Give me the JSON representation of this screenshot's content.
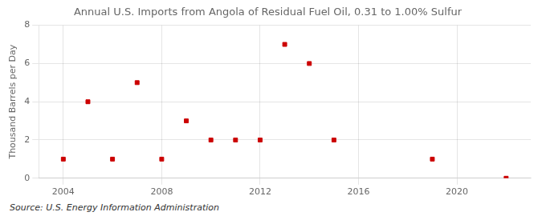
{
  "chart_data": {
    "type": "scatter",
    "title": "Annual U.S. Imports from Angola of Residual Fuel Oil, 0.31 to 1.00% Sulfur",
    "ylabel": "Thousand Barrels per Day",
    "annotations": [
      "Source: U.S. Energy Information Administration"
    ],
    "x": [
      2004,
      2005,
      2006,
      2007,
      2008,
      2009,
      2010,
      2011,
      2012,
      2013,
      2014,
      2015,
      2019,
      2022
    ],
    "values": [
      1,
      4,
      1,
      5,
      1,
      3,
      2,
      2,
      2,
      7,
      6,
      2,
      1,
      0
    ],
    "color": "#cc0000",
    "marker": "square",
    "xlim": [
      2003,
      2023
    ],
    "xticks": [
      2004,
      2008,
      2012,
      2016,
      2020
    ],
    "ylim": [
      0,
      8
    ],
    "yticks": [
      0,
      2,
      4,
      6,
      8
    ],
    "grid": true
  }
}
